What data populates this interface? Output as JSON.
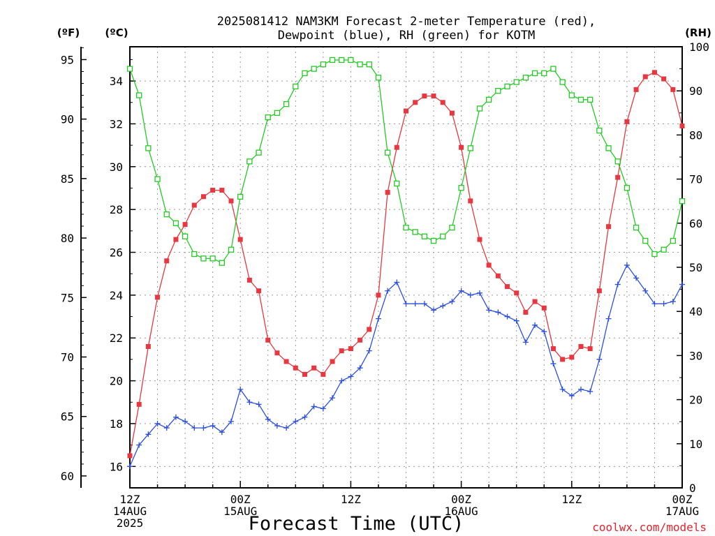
{
  "chart_data": {
    "type": "line",
    "title": "2025081412 NAM3KM Forecast 2-meter Temperature (red),",
    "subtitle": "Dewpoint (blue), RH (green) for KOTM",
    "xlabel": "Forecast Time (UTC)",
    "credit": "coolwx.com/models",
    "units": {
      "f": "(ºF)",
      "c": "(ºC)",
      "rh": "(RH)"
    },
    "x": [
      0,
      1,
      2,
      3,
      4,
      5,
      6,
      7,
      8,
      9,
      10,
      11,
      12,
      13,
      14,
      15,
      16,
      17,
      18,
      19,
      20,
      21,
      22,
      23,
      24,
      25,
      26,
      27,
      28,
      29,
      30,
      31,
      32,
      33,
      34,
      35,
      36,
      37,
      38,
      39,
      40,
      41,
      42,
      43,
      44,
      45,
      46,
      47,
      48,
      49,
      50,
      51,
      52,
      53,
      54,
      55,
      56,
      57,
      58,
      59,
      60
    ],
    "x_range_hours": [
      0,
      60
    ],
    "x_ticks": [
      {
        "hour": 0,
        "lines": [
          "12Z",
          "14AUG",
          "2025"
        ]
      },
      {
        "hour": 12,
        "lines": [
          "00Z",
          "15AUG"
        ]
      },
      {
        "hour": 24,
        "lines": [
          "12Z"
        ]
      },
      {
        "hour": 36,
        "lines": [
          "00Z",
          "16AUG"
        ]
      },
      {
        "hour": 48,
        "lines": [
          "12Z"
        ]
      },
      {
        "hour": 60,
        "lines": [
          "00Z",
          "17AUG"
        ]
      }
    ],
    "y_celsius_range": [
      15,
      35.6
    ],
    "y_celsius_ticks": [
      "16",
      "18",
      "20",
      "22",
      "24",
      "26",
      "28",
      "30",
      "32",
      "34"
    ],
    "y_fahrenheit_ticks": [
      "60",
      "65",
      "70",
      "75",
      "80",
      "85",
      "90",
      "95"
    ],
    "y_rh_range": [
      0,
      100
    ],
    "y_rh_ticks": [
      "0",
      "10",
      "20",
      "30",
      "40",
      "50",
      "60",
      "70",
      "80",
      "90",
      "100"
    ],
    "grid": true,
    "series": [
      {
        "name": "Temperature",
        "color": "#e8373e",
        "marker": "filled-square",
        "axis": "celsius",
        "values": [
          16.5,
          18.9,
          21.6,
          23.9,
          25.6,
          26.6,
          27.3,
          28.2,
          28.6,
          28.9,
          28.9,
          28.4,
          26.6,
          24.7,
          24.2,
          21.9,
          21.3,
          20.9,
          20.6,
          20.3,
          20.6,
          20.3,
          20.9,
          21.4,
          21.5,
          21.9,
          22.4,
          24.0,
          28.8,
          30.9,
          32.6,
          33.0,
          33.3,
          33.3,
          33.0,
          32.5,
          30.9,
          28.4,
          26.6,
          25.4,
          24.9,
          24.4,
          24.1,
          23.2,
          23.7,
          23.4,
          21.5,
          21.0,
          21.1,
          21.6,
          21.5,
          24.2,
          27.2,
          29.5,
          32.1,
          33.6,
          34.2,
          34.4,
          34.1,
          33.6,
          31.9
        ]
      },
      {
        "name": "Dewpoint",
        "color": "#2b4fe0",
        "marker": "plus",
        "axis": "celsius",
        "values": [
          16.0,
          17.0,
          17.5,
          18.0,
          17.8,
          18.3,
          18.1,
          17.8,
          17.8,
          17.9,
          17.6,
          18.1,
          19.6,
          19.0,
          18.9,
          18.2,
          17.9,
          17.8,
          18.1,
          18.3,
          18.8,
          18.7,
          19.2,
          20.0,
          20.2,
          20.6,
          21.4,
          22.9,
          24.2,
          24.6,
          23.6,
          23.6,
          23.6,
          23.3,
          23.5,
          23.7,
          24.2,
          24.0,
          24.1,
          23.3,
          23.2,
          23.0,
          22.8,
          21.8,
          22.6,
          22.3,
          20.8,
          19.6,
          19.3,
          19.6,
          19.5,
          21.0,
          22.9,
          24.5,
          25.4,
          24.8,
          24.2,
          23.6,
          23.6,
          23.7,
          24.5
        ]
      },
      {
        "name": "RH",
        "color": "#22cc22",
        "marker": "open-square",
        "axis": "rh",
        "values": [
          95,
          89,
          77,
          70,
          62,
          60,
          57,
          53,
          52,
          52,
          51,
          54,
          66,
          74,
          76,
          84,
          85,
          87,
          91,
          94,
          95,
          96,
          97,
          97,
          97,
          96,
          96,
          93,
          76,
          69,
          59,
          58,
          57,
          56,
          57,
          59,
          68,
          77,
          86,
          88,
          90,
          91,
          92,
          93,
          94,
          94,
          95,
          92,
          89,
          88,
          88,
          81,
          77,
          74,
          68,
          59,
          56,
          53,
          54,
          56,
          65
        ]
      }
    ]
  }
}
